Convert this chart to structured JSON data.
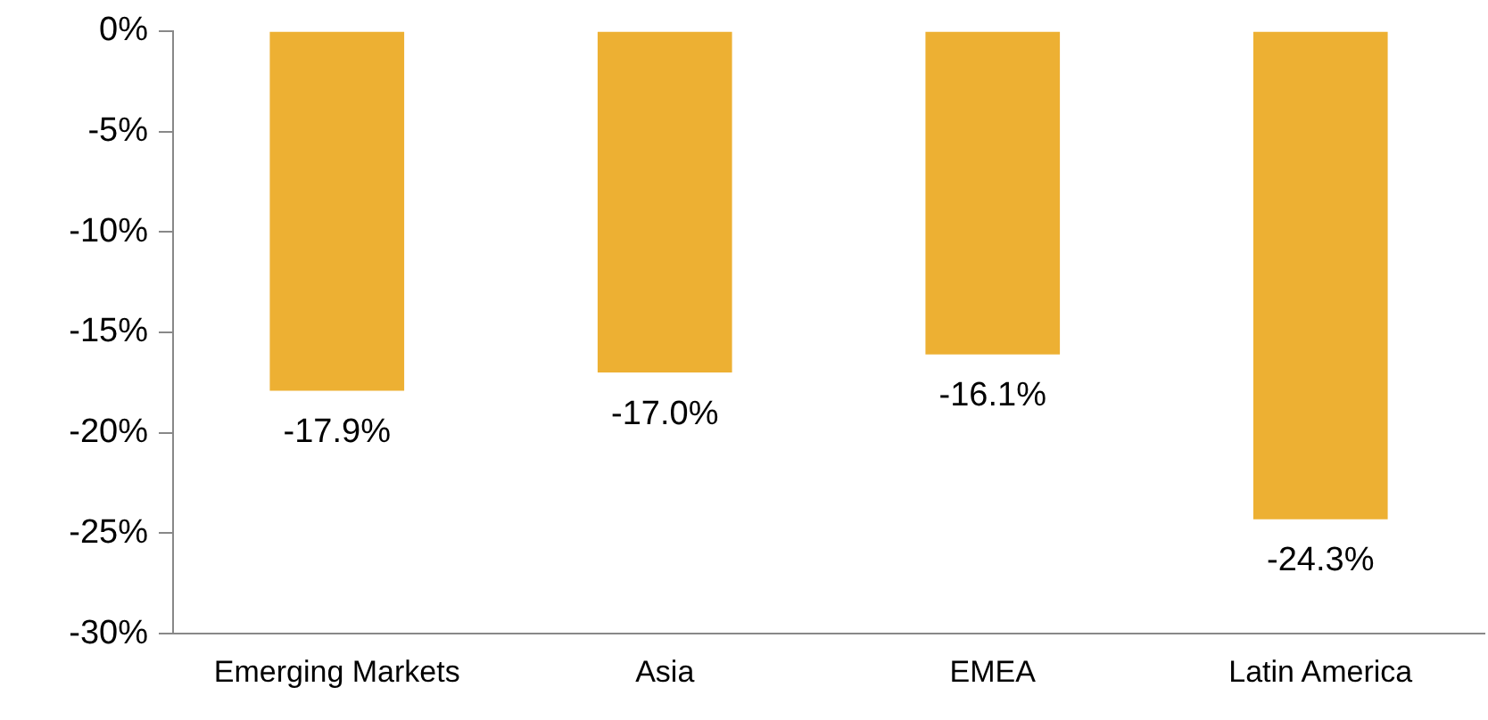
{
  "chart_data": {
    "type": "bar",
    "categories": [
      "Emerging Markets",
      "Asia",
      "EMEA",
      "Latin America"
    ],
    "values": [
      -17.9,
      -17.0,
      -16.1,
      -24.3
    ],
    "value_labels": [
      "-17.9%",
      "-17.0%",
      "-16.1%",
      "-24.3%"
    ],
    "color": "#edb033",
    "ylim": [
      -30,
      0
    ],
    "yticks": [
      {
        "value": 0,
        "label": "0%"
      },
      {
        "value": -5,
        "label": "-5%"
      },
      {
        "value": -10,
        "label": "-10%"
      },
      {
        "value": -15,
        "label": "-15%"
      },
      {
        "value": -20,
        "label": "-20%"
      },
      {
        "value": -25,
        "label": "-25%"
      },
      {
        "value": -30,
        "label": "-30%"
      }
    ],
    "grid": false,
    "legend": false
  }
}
